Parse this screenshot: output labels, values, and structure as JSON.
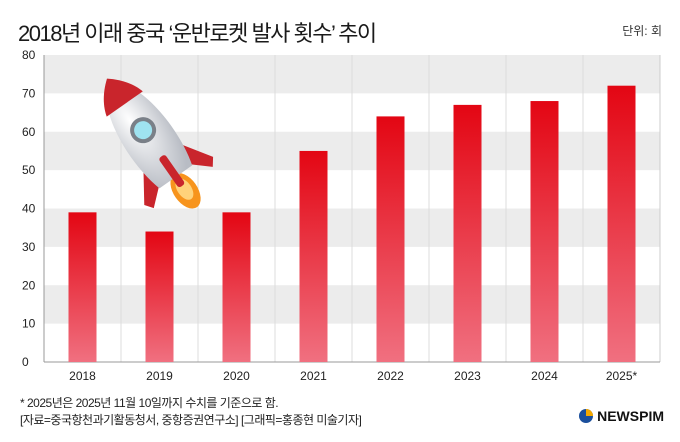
{
  "title": "2018년 이래 중국 ‘운반로켓 발사 횟수’ 추이",
  "unit": "단위: 회",
  "note": "* 2025년은 2025년 11월 10일까지 수치를 기준으로 함.",
  "source": "[자료=중국항천과기활동청서, 중항증권연구소] [그래픽=홍종현 미술기자]",
  "logo": "NEWSPIM",
  "colors": {
    "bar_top": "#e30613",
    "bar_bottom": "#f07080",
    "band": "#ececec"
  },
  "chart_data": {
    "type": "bar",
    "title": "2018년 이래 중국 ‘운반로켓 발사 횟수’ 추이",
    "xlabel": "",
    "ylabel": "단위: 회",
    "categories": [
      "2018",
      "2019",
      "2020",
      "2021",
      "2022",
      "2023",
      "2024",
      "2025*"
    ],
    "values": [
      39,
      34,
      39,
      55,
      64,
      67,
      68,
      72
    ],
    "ylim": [
      0,
      80
    ],
    "yticks": [
      0,
      10,
      20,
      30,
      40,
      50,
      60,
      70,
      80
    ]
  }
}
